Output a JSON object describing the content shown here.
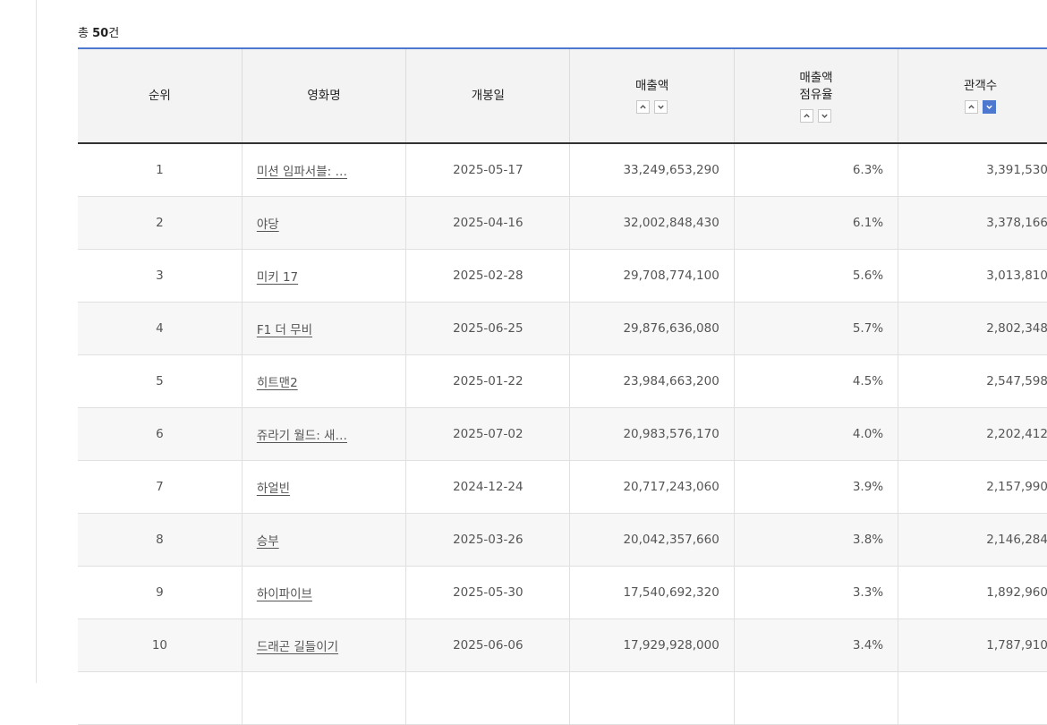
{
  "summary": {
    "prefix": "총",
    "count": "50",
    "suffix": "건"
  },
  "columns": [
    {
      "label": "순위",
      "sortable": false
    },
    {
      "label": "영화명",
      "sortable": false
    },
    {
      "label": "개봉일",
      "sortable": false
    },
    {
      "label": "매출액",
      "sortable": true,
      "active": "none"
    },
    {
      "label_line1": "매출액",
      "label_line2": "점유율",
      "sortable": true,
      "active": "none"
    },
    {
      "label": "관객수",
      "sortable": true,
      "active": "desc"
    }
  ],
  "rows": [
    {
      "rank": "1",
      "title": "미션 임파서블: …",
      "date": "2025-05-17",
      "revenue": "33,249,653,290",
      "share": "6.3%",
      "audience": "3,391,530"
    },
    {
      "rank": "2",
      "title": "야당",
      "date": "2025-04-16",
      "revenue": "32,002,848,430",
      "share": "6.1%",
      "audience": "3,378,166"
    },
    {
      "rank": "3",
      "title": "미키 17",
      "date": "2025-02-28",
      "revenue": "29,708,774,100",
      "share": "5.6%",
      "audience": "3,013,810"
    },
    {
      "rank": "4",
      "title": "F1 더 무비",
      "date": "2025-06-25",
      "revenue": "29,876,636,080",
      "share": "5.7%",
      "audience": "2,802,348"
    },
    {
      "rank": "5",
      "title": "히트맨2",
      "date": "2025-01-22",
      "revenue": "23,984,663,200",
      "share": "4.5%",
      "audience": "2,547,598"
    },
    {
      "rank": "6",
      "title": "쥬라기 월드: 새…",
      "date": "2025-07-02",
      "revenue": "20,983,576,170",
      "share": "4.0%",
      "audience": "2,202,412"
    },
    {
      "rank": "7",
      "title": "하얼빈",
      "date": "2024-12-24",
      "revenue": "20,717,243,060",
      "share": "3.9%",
      "audience": "2,157,990"
    },
    {
      "rank": "8",
      "title": "승부",
      "date": "2025-03-26",
      "revenue": "20,042,357,660",
      "share": "3.8%",
      "audience": "2,146,284"
    },
    {
      "rank": "9",
      "title": "하이파이브",
      "date": "2025-05-30",
      "revenue": "17,540,692,320",
      "share": "3.3%",
      "audience": "1,892,960"
    },
    {
      "rank": "10",
      "title": "드래곤 길들이기",
      "date": "2025-06-06",
      "revenue": "17,929,928,000",
      "share": "3.4%",
      "audience": "1,787,910"
    },
    {
      "rank": "",
      "title": "",
      "date": "",
      "revenue": "",
      "share": "",
      "audience": ""
    }
  ],
  "icons": {
    "sort_asc": "chevron-up-icon",
    "sort_desc": "chevron-down-icon"
  },
  "colors": {
    "accent": "#4c78d0",
    "header_bg": "#f3f3f3",
    "stripe_bg": "#f7f7f7"
  }
}
